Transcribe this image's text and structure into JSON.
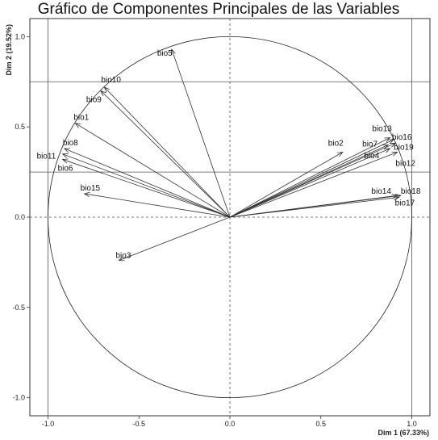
{
  "chart_data": {
    "type": "scatter",
    "title": "Gráfico de Componentes Principales de las Variables",
    "xlabel": "Dim 1 (67.33%)",
    "ylabel": "Dim 2 (19.52%)",
    "xlim": [
      -1.1,
      1.1
    ],
    "ylim": [
      -1.1,
      1.1
    ],
    "x_ticks": [
      "-1.0",
      "-0.5",
      "0.0",
      "0.5",
      "1.0"
    ],
    "y_ticks": [
      "-1.0",
      "-0.5",
      "0.0",
      "0.5",
      "1.0"
    ],
    "x_tick_values": [
      -1.0,
      -0.5,
      0.0,
      0.5,
      1.0
    ],
    "y_tick_values": [
      -1.0,
      -0.5,
      0.0,
      0.5,
      1.0
    ],
    "grid_lines_x": [
      -1.0,
      1.0
    ],
    "grid_lines_y": [
      0.25,
      0.75
    ],
    "unit_circle": true,
    "variables": [
      {
        "name": "bio5",
        "x": -0.32,
        "y": 0.93
      },
      {
        "name": "bio10",
        "x": -0.69,
        "y": 0.72
      },
      {
        "name": "bio9",
        "x": -0.71,
        "y": 0.7
      },
      {
        "name": "bio1",
        "x": -0.85,
        "y": 0.52
      },
      {
        "name": "bio8",
        "x": -0.91,
        "y": 0.38
      },
      {
        "name": "bio11",
        "x": -0.92,
        "y": 0.35
      },
      {
        "name": "bio6",
        "x": -0.92,
        "y": 0.32
      },
      {
        "name": "bio15",
        "x": -0.8,
        "y": 0.13
      },
      {
        "name": "bio3",
        "x": -0.61,
        "y": -0.24
      },
      {
        "name": "bio2",
        "x": 0.62,
        "y": 0.36
      },
      {
        "name": "bio13",
        "x": 0.88,
        "y": 0.44
      },
      {
        "name": "bio7",
        "x": 0.87,
        "y": 0.4
      },
      {
        "name": "bio16",
        "x": 0.9,
        "y": 0.43
      },
      {
        "name": "bio19",
        "x": 0.91,
        "y": 0.41
      },
      {
        "name": "bio4",
        "x": 0.88,
        "y": 0.38
      },
      {
        "name": "bio12",
        "x": 0.92,
        "y": 0.36
      },
      {
        "name": "bio14",
        "x": 0.92,
        "y": 0.12
      },
      {
        "name": "bio18",
        "x": 0.94,
        "y": 0.12
      },
      {
        "name": "bio17",
        "x": 0.93,
        "y": 0.11
      }
    ]
  }
}
